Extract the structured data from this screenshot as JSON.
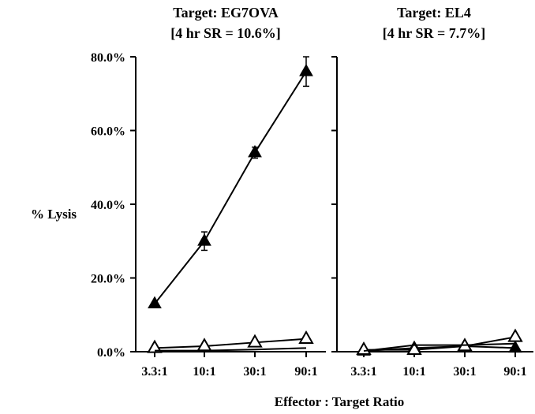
{
  "chart_data": [
    {
      "type": "line",
      "title": "Target: EG7OVA",
      "subtitle": "[4 hr SR = 10.6%]",
      "xlabel": "",
      "ylabel": "% Lysis",
      "categories": [
        "3.3:1",
        "10:1",
        "30:1",
        "90:1"
      ],
      "y_ticks": [
        "0.0%",
        "20.0%",
        "40.0%",
        "60.0%",
        "80.0%"
      ],
      "ylim": [
        0,
        80
      ],
      "grid": false,
      "series": [
        {
          "marker": "filled-triangle",
          "values": [
            13.0,
            30.0,
            54.0,
            76.0
          ],
          "errors": [
            0.5,
            2.5,
            1.5,
            4.0
          ]
        },
        {
          "marker": "open-triangle",
          "values": [
            1.0,
            1.5,
            2.5,
            3.5
          ],
          "errors": [
            0.3,
            0.3,
            0.5,
            0.5
          ]
        },
        {
          "marker": "none",
          "values": [
            0.3,
            0.3,
            0.6,
            1.0
          ],
          "errors": [
            0,
            0,
            0,
            0
          ]
        }
      ]
    },
    {
      "type": "line",
      "title": "Target: EL4",
      "subtitle": "[4 hr SR = 7.7%]",
      "xlabel": "Effector : Target Ratio",
      "ylabel": "",
      "categories": [
        "3.3:1",
        "10:1",
        "30:1",
        "90:1"
      ],
      "ylim": [
        0,
        80
      ],
      "grid": false,
      "series": [
        {
          "marker": "filled-triangle",
          "values": [
            0.2,
            1.0,
            1.5,
            1.0
          ],
          "errors": [
            0,
            0,
            0,
            0
          ]
        },
        {
          "marker": "open-triangle",
          "values": [
            0.5,
            0.5,
            1.5,
            4.0
          ],
          "errors": [
            0,
            0,
            0,
            0.5
          ]
        },
        {
          "marker": "none",
          "values": [
            0.2,
            1.8,
            1.8,
            2.2
          ],
          "errors": [
            0,
            0,
            0,
            0
          ]
        }
      ]
    }
  ]
}
